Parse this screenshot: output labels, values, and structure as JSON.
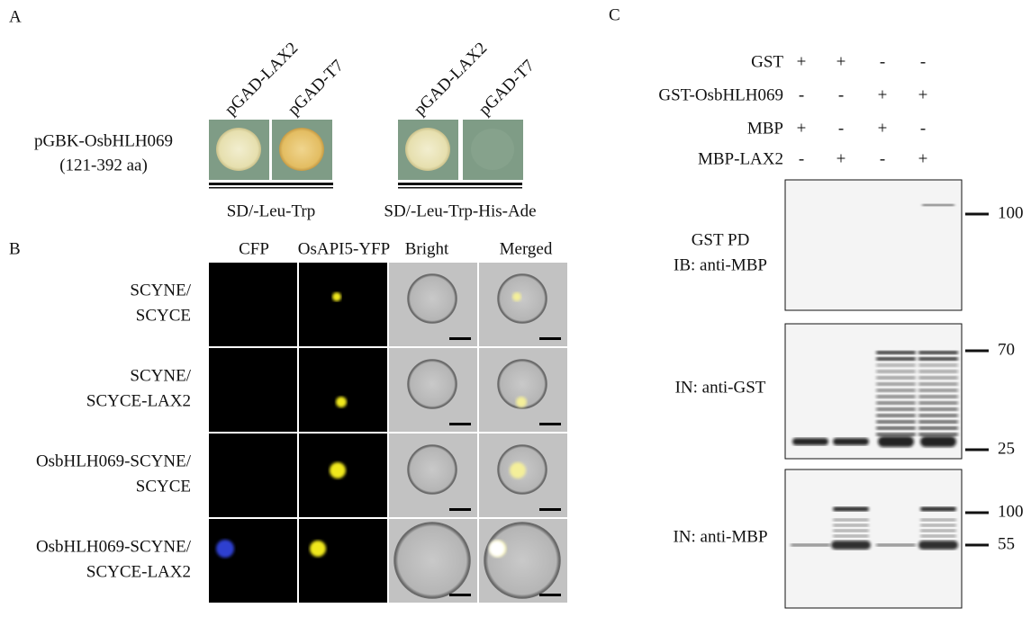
{
  "panel_a": {
    "label": "A",
    "columns": [
      "pGAD-LAX2",
      "pGAD-T7",
      "pGAD-LAX2",
      "pGAD-T7"
    ],
    "row_label": [
      "pGBK-OsbHLH069",
      "(121-392 aa)"
    ],
    "media": [
      "SD/-Leu-Trp",
      "SD/-Leu-Trp-His-Ade"
    ]
  },
  "panel_b": {
    "label": "B",
    "columns": [
      "CFP",
      "OsAPI5-YFP",
      "Bright",
      "Merged"
    ],
    "rows": [
      [
        "SCYNE/",
        "SCYCE"
      ],
      [
        "SCYNE/",
        "SCYCE-LAX2"
      ],
      [
        "OsbHLH069-SCYNE/",
        "SCYCE"
      ],
      [
        "OsbHLH069-SCYNE/",
        "SCYCE-LAX2"
      ]
    ]
  },
  "panel_c": {
    "label": "C",
    "conditions": [
      {
        "name": "GST",
        "signs": [
          "+",
          "+",
          "-",
          "-"
        ]
      },
      {
        "name": "GST-OsbHLH069",
        "signs": [
          "-",
          "-",
          "+",
          "+"
        ]
      },
      {
        "name": "MBP",
        "signs": [
          "+",
          "-",
          "+",
          "-"
        ]
      },
      {
        "name": "MBP-LAX2",
        "signs": [
          "-",
          "+",
          "-",
          "+"
        ]
      }
    ],
    "blots": [
      {
        "labels": [
          "GST PD",
          "IB: anti-MBP"
        ],
        "markers": [
          100
        ]
      },
      {
        "labels": [
          "IN: anti-GST"
        ],
        "markers": [
          70,
          25
        ]
      },
      {
        "labels": [
          "IN: anti-MBP"
        ],
        "markers": [
          100,
          55
        ]
      }
    ]
  }
}
